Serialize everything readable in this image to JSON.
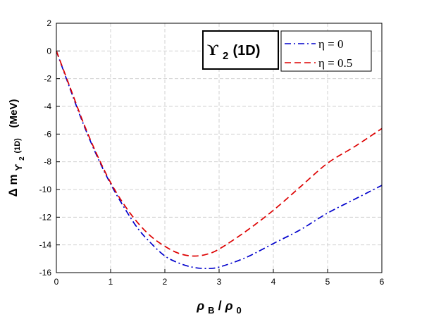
{
  "chart_data": {
    "type": "line",
    "xlim": [
      0,
      6
    ],
    "ylim": [
      -16,
      2
    ],
    "x_ticks": [
      "0",
      "1",
      "2",
      "3",
      "4",
      "5",
      "6"
    ],
    "y_ticks": [
      "2",
      "0",
      "-2",
      "-4",
      "-6",
      "-8",
      "-10",
      "-12",
      "-14",
      "-16"
    ],
    "xlabel": {
      "main": "ρ",
      "sub": "B",
      "sep": "/",
      "main2": "ρ",
      "sub2": "0"
    },
    "ylabel": {
      "delta": "Δ",
      "m": "m",
      "upsilon": "ϒ",
      "sub2": "2",
      "subD": "(1D)",
      "unit": "(MeV)"
    },
    "annotation": {
      "upsilon": "ϒ",
      "sub": "2",
      "state": "(1D)"
    },
    "grid": true,
    "legend_position": "top-right",
    "series": [
      {
        "name": "η = 0",
        "color": "#0000cc",
        "style": "dash-dot",
        "x": [
          0,
          0.25,
          0.5,
          0.75,
          1.0,
          1.25,
          1.5,
          1.75,
          2.0,
          2.25,
          2.5,
          2.75,
          3.0,
          3.5,
          4.0,
          4.5,
          5.0,
          5.5,
          6.0
        ],
        "y": [
          0,
          -2.7,
          -5.3,
          -7.6,
          -9.6,
          -11.3,
          -12.8,
          -13.9,
          -14.8,
          -15.3,
          -15.6,
          -15.7,
          -15.6,
          -14.9,
          -13.9,
          -12.9,
          -11.7,
          -10.7,
          -9.7
        ]
      },
      {
        "name": "η = 0.5",
        "color": "#dd0000",
        "style": "dashed",
        "x": [
          0,
          0.25,
          0.5,
          0.75,
          1.0,
          1.25,
          1.5,
          1.75,
          2.0,
          2.25,
          2.5,
          2.75,
          3.0,
          3.5,
          4.0,
          4.5,
          5.0,
          5.5,
          6.0
        ],
        "y": [
          0,
          -2.6,
          -5.2,
          -7.5,
          -9.5,
          -11.1,
          -12.4,
          -13.4,
          -14.1,
          -14.6,
          -14.8,
          -14.7,
          -14.3,
          -13.0,
          -11.5,
          -9.8,
          -8.1,
          -6.9,
          -5.6
        ]
      }
    ]
  }
}
